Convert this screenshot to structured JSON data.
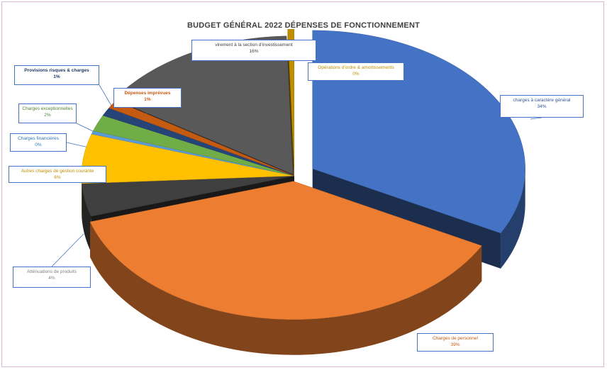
{
  "chart_data": {
    "type": "pie",
    "style": "3d-exploded",
    "title": "BUDGET GÉNÉRAL 2022 DÉPENSES DE FONCTIONNEMENT",
    "slices": [
      {
        "label": "charges à caractère général",
        "percent_label": "34%",
        "value": 34,
        "color": "#4472c4"
      },
      {
        "label": "Charges de personnel",
        "percent_label": "39%",
        "value": 39,
        "color": "#ed7d31"
      },
      {
        "label": "Atténuations de produits",
        "percent_label": "4%",
        "value": 4,
        "color": "#3f3f3f"
      },
      {
        "label": "Autres charges de gestion courante",
        "percent_label": "6%",
        "value": 6,
        "color": "#ffc000"
      },
      {
        "label": "Charges financières",
        "percent_label": "0%",
        "value": 0.4,
        "color": "#5b9bd5"
      },
      {
        "label": "Charges exceptionnelles",
        "percent_label": "2%",
        "value": 2,
        "color": "#70ad47"
      },
      {
        "label": "Provisions risques & charges",
        "percent_label": "1%",
        "value": 1,
        "color": "#264478"
      },
      {
        "label": "Dépenses imprévues",
        "percent_label": "1%",
        "value": 1,
        "color": "#c55a11"
      },
      {
        "label": "virement à la section d'investissement",
        "percent_label": "16%",
        "value": 16,
        "color": "#595959"
      },
      {
        "label": "Opérations d'ordre & amortissements",
        "percent_label": "0%",
        "value": 0.5,
        "color": "#bf8f00"
      }
    ]
  }
}
